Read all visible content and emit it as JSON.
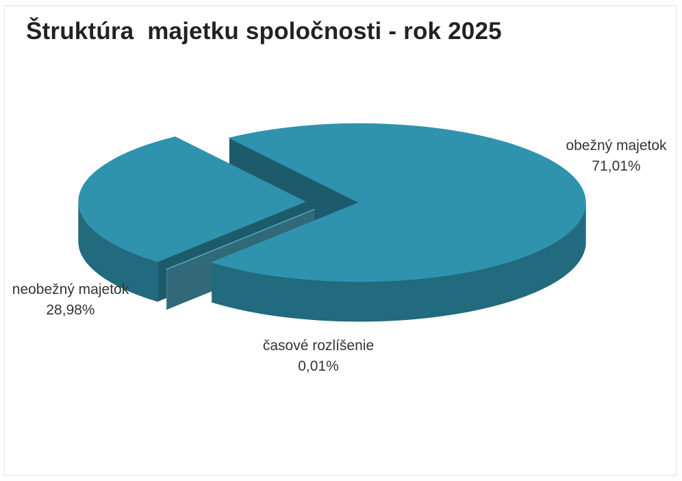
{
  "chart_data": {
    "type": "pie3d",
    "title": "Štruktúra  majetku spoločnosti - rok 2025",
    "categories": [
      "obežný majetok",
      "časové rozlíšenie",
      "neobežný majetok"
    ],
    "values": [
      71.01,
      0.01,
      28.98
    ],
    "value_labels": [
      "71,01%",
      "0,01%",
      "28,98%"
    ],
    "colors": [
      "#2f93ae",
      "#4fa9c1",
      "#2f93ae"
    ]
  }
}
